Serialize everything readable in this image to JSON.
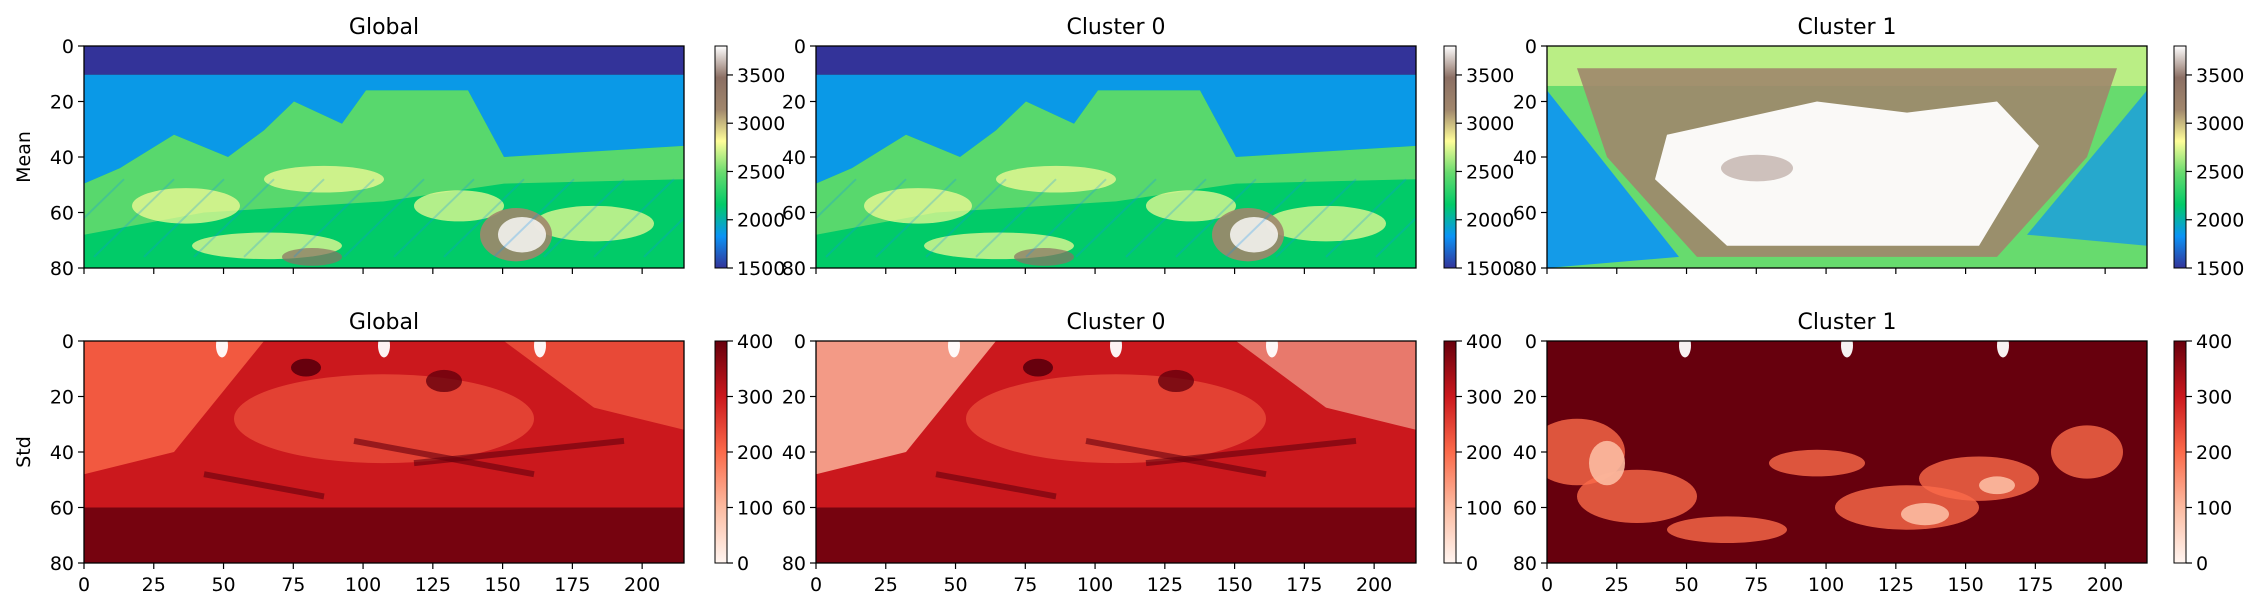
{
  "chart_data": {
    "type": "heatmap",
    "rows": [
      {
        "ylabel": "Mean",
        "colorbar": {
          "min": 1500,
          "max": 3800,
          "ticks": [
            1500,
            2000,
            2500,
            3000,
            3500
          ],
          "colormap": "terrain"
        },
        "panels": [
          {
            "title": "Global",
            "field": "global-mean"
          },
          {
            "title": "Cluster 0",
            "field": "cluster0-mean"
          },
          {
            "title": "Cluster 1",
            "field": "cluster1-mean"
          }
        ]
      },
      {
        "ylabel": "Std",
        "colorbar": {
          "min": 0,
          "max": 400,
          "ticks": [
            0,
            100,
            200,
            300,
            400
          ],
          "colormap": "reds"
        },
        "panels": [
          {
            "title": "Global",
            "field": "global-std"
          },
          {
            "title": "Cluster 0",
            "field": "cluster0-std"
          },
          {
            "title": "Cluster 1",
            "field": "cluster1-std"
          }
        ]
      }
    ],
    "x_range": [
      0,
      215
    ],
    "y_range": [
      0,
      80
    ],
    "x_ticks": [
      0,
      25,
      50,
      75,
      100,
      125,
      150,
      175,
      200
    ],
    "y_ticks": [
      0,
      20,
      40,
      60,
      80
    ],
    "y_inverted": true,
    "colors": {
      "terrain": [
        "#333399",
        "#0b93f5",
        "#01cb68",
        "#67db6e",
        "#fffe99",
        "#a0866c",
        "#8b6f63",
        "#ffffff"
      ],
      "reds": [
        "#fff5f0",
        "#fcbba1",
        "#fb6a4a",
        "#cb181d",
        "#67000d"
      ]
    }
  }
}
